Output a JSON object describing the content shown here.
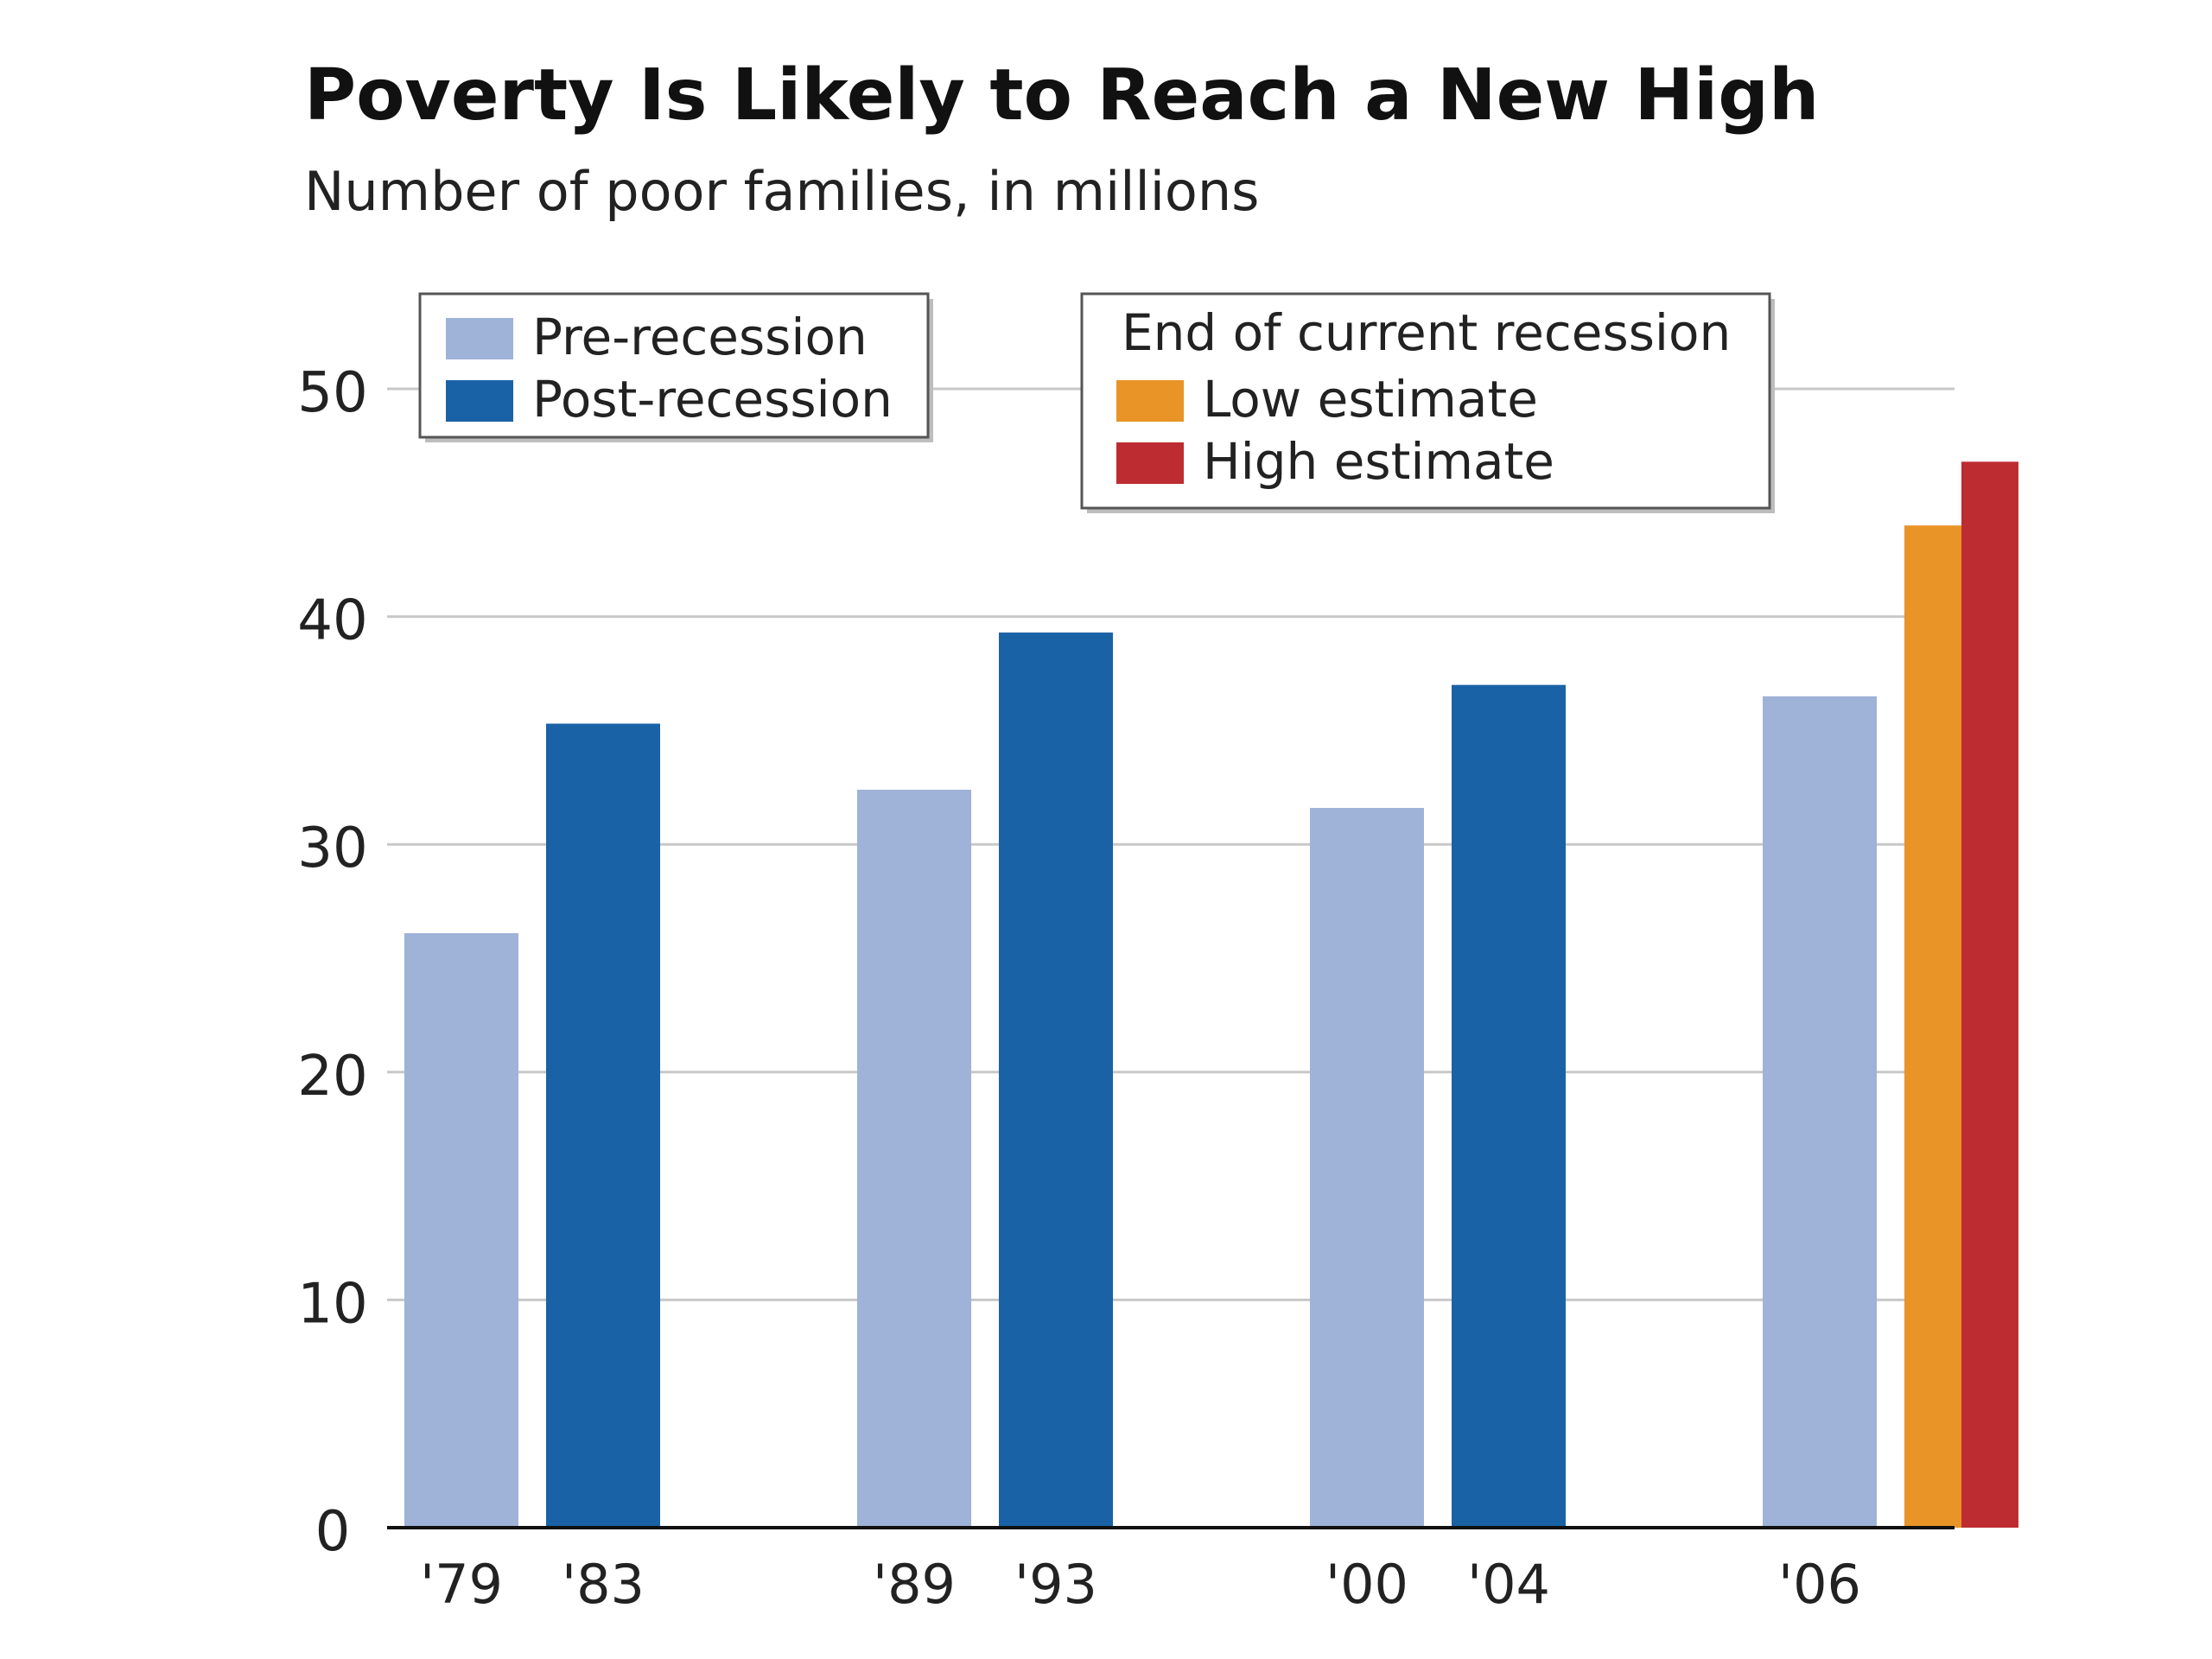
{
  "chart_data": {
    "type": "bar",
    "title": "Poverty Is Likely to Reach a New High",
    "subtitle": "Number of poor families, in millions",
    "xlabel": "",
    "ylabel": "",
    "ylim": [
      0,
      50
    ],
    "yticks": [
      "0",
      "10",
      "20",
      "30",
      "40",
      "50"
    ],
    "grid": true,
    "bars": [
      {
        "label": "'79",
        "value": 26.1,
        "series": "Pre-recession",
        "group": 0
      },
      {
        "label": "'83",
        "value": 35.3,
        "series": "Post-recession",
        "group": 0
      },
      {
        "label": "'89",
        "value": 32.4,
        "series": "Pre-recession",
        "group": 1
      },
      {
        "label": "'93",
        "value": 39.3,
        "series": "Post-recession",
        "group": 1
      },
      {
        "label": "'00",
        "value": 31.6,
        "series": "Pre-recession",
        "group": 2
      },
      {
        "label": "'04",
        "value": 37.0,
        "series": "Post-recession",
        "group": 2
      },
      {
        "label": "'06",
        "value": 36.5,
        "series": "Pre-recession",
        "group": 3
      },
      {
        "label": "",
        "value": 44.0,
        "series": "Low estimate",
        "group": 3
      },
      {
        "label": "",
        "value": 46.8,
        "series": "High estimate",
        "group": 3
      }
    ],
    "legends": [
      {
        "heading": "",
        "items": [
          {
            "name": "Pre-recession",
            "color": "#9fb2d8"
          },
          {
            "name": "Post-recession",
            "color": "#1a62a6"
          }
        ]
      },
      {
        "heading": "End of current recession",
        "items": [
          {
            "name": "Low estimate",
            "color": "#e89426"
          },
          {
            "name": "High estimate",
            "color": "#bd2c31"
          }
        ]
      }
    ],
    "colors": {
      "Pre-recession": "#9fb2d8",
      "Post-recession": "#1a62a6",
      "Low estimate": "#e89426",
      "High estimate": "#bd2c31"
    }
  }
}
